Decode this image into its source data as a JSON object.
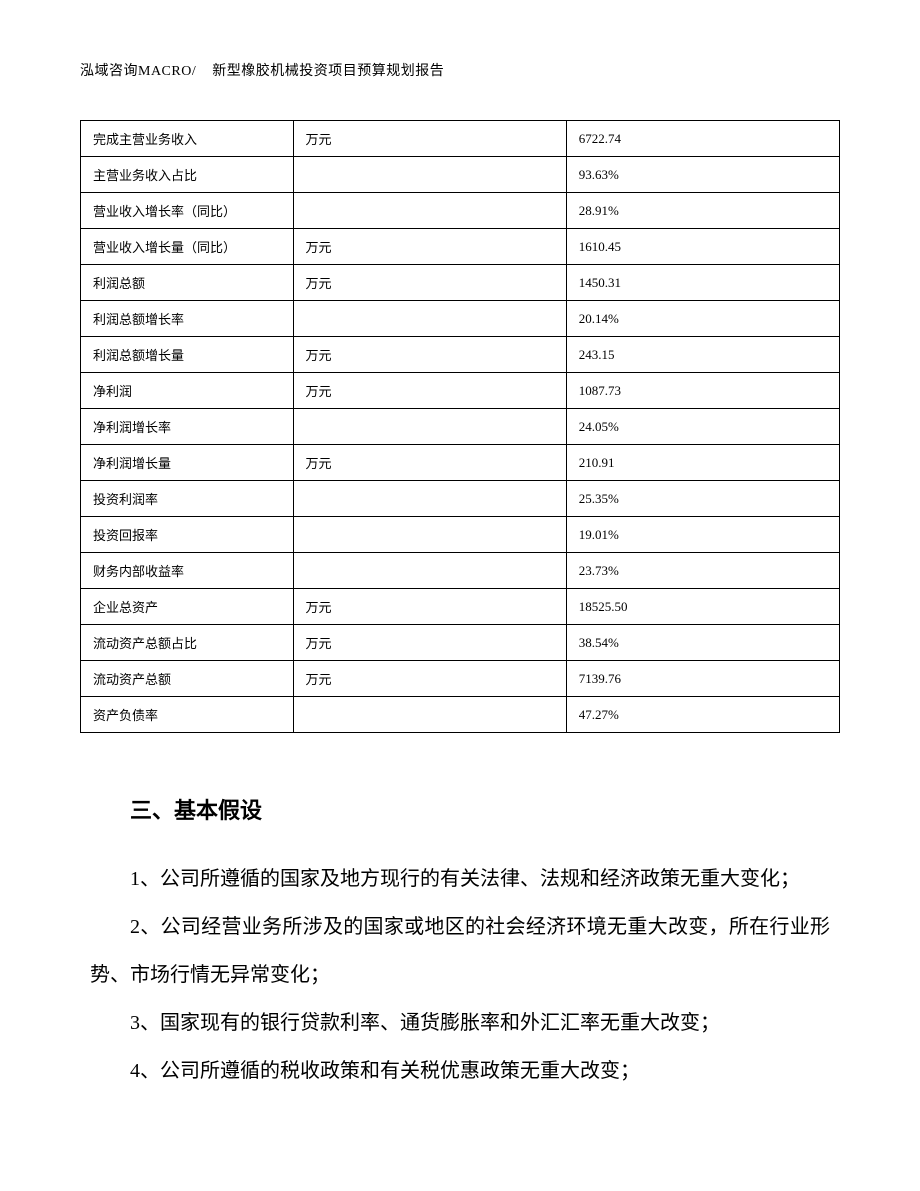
{
  "header": {
    "company": "泓域咨询MACRO/",
    "title": "新型橡胶机械投资项目预算规划报告"
  },
  "table": {
    "rows": [
      {
        "label": "完成主营业务收入",
        "unit": "万元",
        "value": "6722.74"
      },
      {
        "label": "主营业务收入占比",
        "unit": "",
        "value": "93.63%"
      },
      {
        "label": "营业收入增长率（同比）",
        "unit": "",
        "value": "28.91%"
      },
      {
        "label": "营业收入增长量（同比）",
        "unit": "万元",
        "value": "1610.45"
      },
      {
        "label": "利润总额",
        "unit": "万元",
        "value": "1450.31"
      },
      {
        "label": "利润总额增长率",
        "unit": "",
        "value": "20.14%"
      },
      {
        "label": "利润总额增长量",
        "unit": "万元",
        "value": "243.15"
      },
      {
        "label": "净利润",
        "unit": "万元",
        "value": "1087.73"
      },
      {
        "label": "净利润增长率",
        "unit": "",
        "value": "24.05%"
      },
      {
        "label": "净利润增长量",
        "unit": "万元",
        "value": "210.91"
      },
      {
        "label": "投资利润率",
        "unit": "",
        "value": "25.35%"
      },
      {
        "label": "投资回报率",
        "unit": "",
        "value": "19.01%"
      },
      {
        "label": "财务内部收益率",
        "unit": "",
        "value": "23.73%"
      },
      {
        "label": "企业总资产",
        "unit": "万元",
        "value": "18525.50"
      },
      {
        "label": "流动资产总额占比",
        "unit": "万元",
        "value": "38.54%"
      },
      {
        "label": "流动资产总额",
        "unit": "万元",
        "value": "7139.76"
      },
      {
        "label": "资产负债率",
        "unit": "",
        "value": "47.27%"
      }
    ]
  },
  "section": {
    "heading": "三、基本假设",
    "paragraphs": [
      "1、公司所遵循的国家及地方现行的有关法律、法规和经济政策无重大变化；",
      "2、公司经营业务所涉及的国家或地区的社会经济环境无重大改变，所在行业形势、市场行情无异常变化；",
      "3、国家现有的银行贷款利率、通货膨胀率和外汇汇率无重大改变；",
      "4、公司所遵循的税收政策和有关税优惠政策无重大改变；"
    ]
  }
}
